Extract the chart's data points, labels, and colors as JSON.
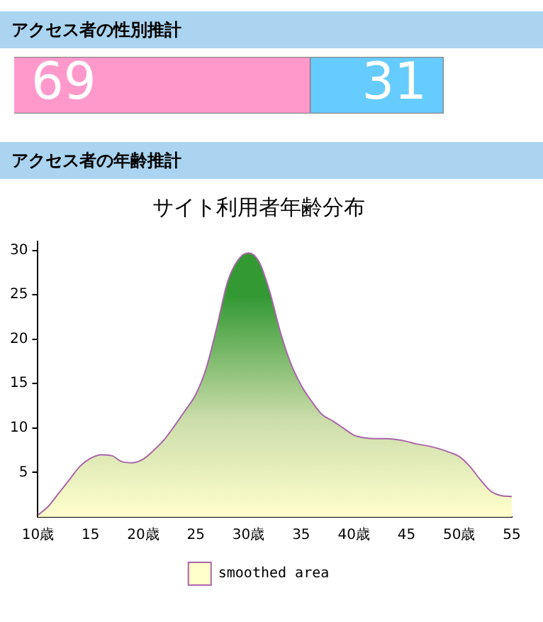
{
  "chart_data": [
    {
      "type": "bar",
      "title": "アクセス者の性別推計",
      "orientation": "horizontal",
      "stacked": true,
      "categories": [
        null
      ],
      "data_labels": true,
      "tick_labels": false,
      "grid": false,
      "legend": false,
      "series": [
        {
          "color": "#ff99cc",
          "values": [
            69
          ]
        },
        {
          "color": "#66ccff",
          "values": [
            31
          ]
        }
      ]
    },
    {
      "type": "area",
      "title": "アクセス者の年齢推計",
      "subtitle": "サイト利用者年齢分布",
      "legend": "bottom",
      "grid": false,
      "marker": "none",
      "xlim": [
        10,
        55
      ],
      "xticks": [
        {
          "value": 10,
          "label": "10歳"
        },
        15,
        {
          "value": 20,
          "label": "20歳"
        },
        25,
        {
          "value": 30,
          "label": "30歳"
        },
        35,
        {
          "value": 40,
          "label": "40歳"
        },
        45,
        {
          "value": 50,
          "label": "50歳"
        },
        55
      ],
      "ylim": [
        0,
        31
      ],
      "yticks": [
        5,
        10,
        15,
        20,
        25,
        30
      ],
      "x": [
        10,
        11,
        12,
        13,
        14,
        15,
        16,
        17,
        18,
        19,
        20,
        21,
        22,
        23,
        24,
        25,
        26,
        27,
        28,
        29,
        30,
        31,
        32,
        33,
        34,
        35,
        36,
        37,
        38,
        39,
        40,
        41,
        42,
        43,
        44,
        45,
        46,
        47,
        48,
        49,
        50,
        51,
        52,
        53,
        54,
        55
      ],
      "series": [
        {
          "name": "smoothed area",
          "color": "#339933",
          "values": [
            0.2,
            1.2,
            2.7,
            4.2,
            5.7,
            6.6,
            7.0,
            6.9,
            6.2,
            6.1,
            6.5,
            7.5,
            8.7,
            10.3,
            12.0,
            13.8,
            16.8,
            21.4,
            26.4,
            28.9,
            29.7,
            28.7,
            25.4,
            20.9,
            17.3,
            14.8,
            13.0,
            11.5,
            10.8,
            10.0,
            9.2,
            8.9,
            8.8,
            8.8,
            8.7,
            8.5,
            8.2,
            8.0,
            7.7,
            7.3,
            6.8,
            5.7,
            4.2,
            2.9,
            2.4,
            2.3
          ]
        }
      ]
    }
  ]
}
